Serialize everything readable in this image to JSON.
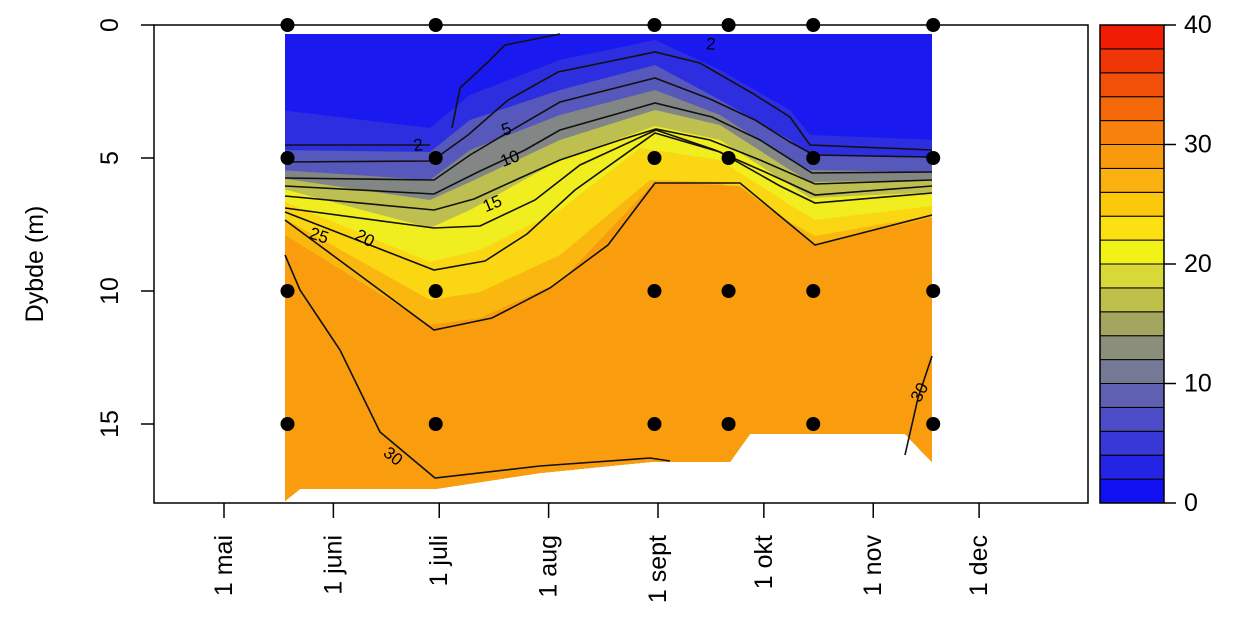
{
  "chart_data": {
    "type": "heatmap",
    "title": "",
    "xlabel": "",
    "ylabel": "Dybde (m)",
    "y_reversed": true,
    "ylim": [
      0,
      18
    ],
    "y_ticks": [
      0,
      5,
      10,
      15
    ],
    "x_ticks": [
      {
        "label": "1 mai",
        "date": "2018-05-01"
      },
      {
        "label": "1 juni",
        "date": "2018-06-01"
      },
      {
        "label": "1 juli",
        "date": "2018-07-01"
      },
      {
        "label": "1 aug",
        "date": "2018-08-01"
      },
      {
        "label": "1 sept",
        "date": "2018-09-01"
      },
      {
        "label": "1 okt",
        "date": "2018-10-01"
      },
      {
        "label": "1 nov",
        "date": "2018-11-01"
      },
      {
        "label": "1 dec",
        "date": "2018-12-01"
      }
    ],
    "sample_dates": [
      "2018-05-19",
      "2018-06-30",
      "2018-08-31",
      "2018-09-21",
      "2018-10-15",
      "2018-11-18"
    ],
    "sample_depths": [
      0,
      5,
      10,
      15
    ],
    "colorbar": {
      "range": [
        0,
        40
      ],
      "ticks": [
        0,
        10,
        20,
        30,
        40
      ],
      "colors": [
        "#1010f0",
        "#2424e4",
        "#3838d6",
        "#4c4cc6",
        "#6060b0",
        "#747a96",
        "#8a8e7a",
        "#a4a660",
        "#bec04a",
        "#d8d838",
        "#f2f218",
        "#fce012",
        "#fbc80c",
        "#fab010",
        "#fa980e",
        "#f8800c",
        "#f4680a",
        "#f25008",
        "#f03606",
        "#f01c04"
      ]
    },
    "contour_labels": [
      {
        "value": "2",
        "label_date": "2018-06-25",
        "label_depth": 4.5
      },
      {
        "value": "5",
        "label_date": "2018-07-20",
        "label_depth": 3.9
      },
      {
        "value": "10",
        "label_date": "2018-07-21",
        "label_depth": 5.0
      },
      {
        "value": "15",
        "label_date": "2018-07-16",
        "label_depth": 6.7
      },
      {
        "value": "20",
        "label_date": "2018-06-10",
        "label_depth": 8.0
      },
      {
        "value": "25",
        "label_date": "2018-05-28",
        "label_depth": 7.9
      },
      {
        "value": "30",
        "label_date": "2018-06-18",
        "label_depth": 16.2
      },
      {
        "value": "2",
        "label_date": "2018-09-16",
        "label_depth": 0.7
      },
      {
        "value": "30",
        "label_date": "2018-11-14",
        "label_depth": 13.8
      }
    ]
  }
}
